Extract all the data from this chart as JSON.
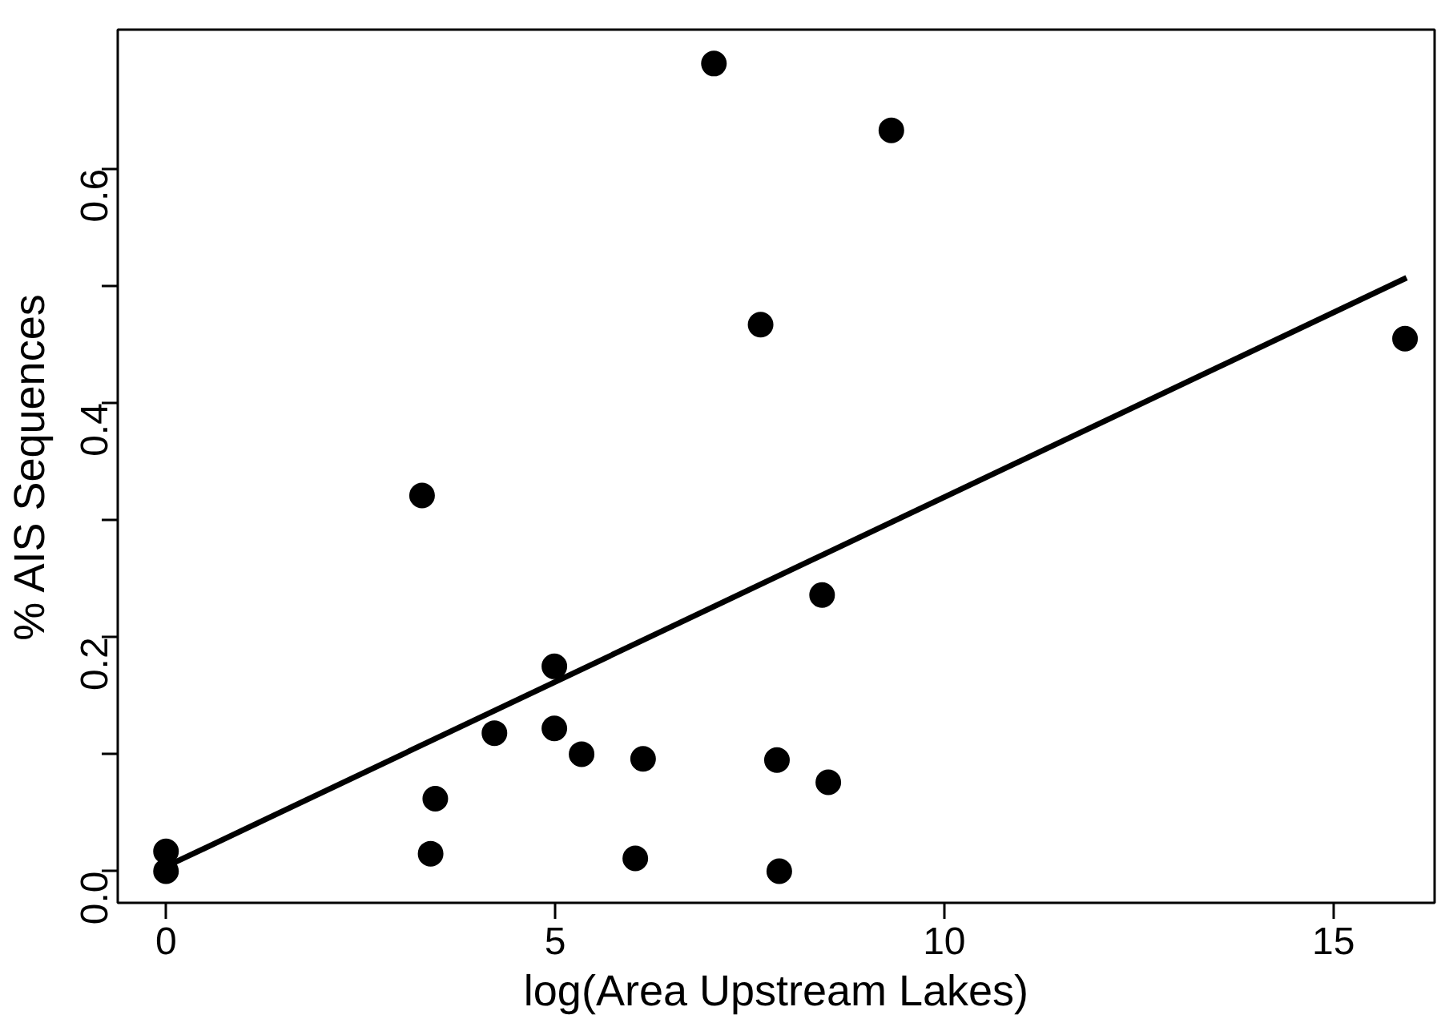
{
  "chart_data": {
    "type": "scatter",
    "xlabel": "log(Area Upstream Lakes)",
    "ylabel": "% AIS Sequences",
    "xlim": [
      -0.62,
      16.3
    ],
    "ylim": [
      -0.027,
      0.719
    ],
    "xticks": [
      0,
      5,
      10,
      15
    ],
    "yticks": [
      {
        "value": 0,
        "label": "0.0"
      },
      {
        "value": 0.1,
        "label": null
      },
      {
        "value": 0.2,
        "label": "0.2"
      },
      {
        "value": 0.3,
        "label": null
      },
      {
        "value": 0.4,
        "label": "0.4"
      },
      {
        "value": 0.5,
        "label": null
      },
      {
        "value": 0.6,
        "label": "0.6"
      }
    ],
    "grid": false,
    "series": [
      {
        "color": "#000000",
        "marker": "circle",
        "x": [
          0,
          0,
          3.29,
          3.4,
          3.46,
          4.22,
          4.99,
          4.99,
          5.34,
          6.03,
          6.13,
          7.04,
          7.64,
          7.85,
          7.88,
          8.43,
          8.51,
          9.32,
          15.92
        ],
        "values": [
          0.017,
          0.0,
          0.321,
          0.015,
          0.062,
          0.118,
          0.175,
          0.122,
          0.1,
          0.011,
          0.096,
          0.69,
          0.467,
          0.095,
          0.0,
          0.236,
          0.076,
          0.633,
          0.455
        ]
      },
      {
        "type": "line",
        "color": "#000000",
        "line_style": "solid",
        "x": [
          0,
          15.94
        ],
        "values": [
          0.004,
          0.507
        ]
      }
    ]
  }
}
